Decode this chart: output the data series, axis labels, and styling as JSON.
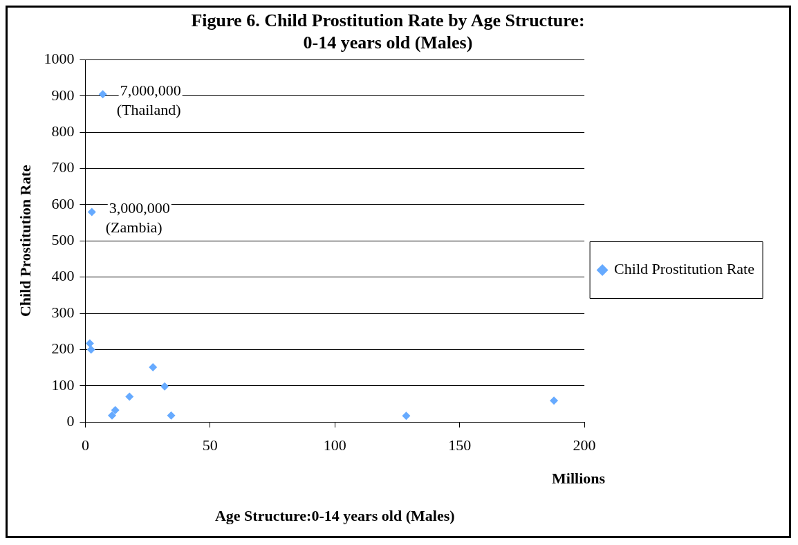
{
  "chart_data": {
    "type": "scatter",
    "title": "Figure 6. Child Prostitution Rate by Age Structure: 0-14 years old (Males)",
    "xlabel": "Age Structure:0-14 years old (Males)",
    "ylabel": "Child Prostitution Rate",
    "x": [
      7,
      2.6,
      1.8,
      2.3,
      10.7,
      12,
      17.7,
      27.1,
      31.8,
      34.4,
      128.6,
      187.8
    ],
    "series": [
      {
        "name": "Child Prostitution Rate",
        "color": "#66aaff",
        "values": [
          905,
          580,
          217,
          200,
          18,
          33,
          70,
          151,
          98,
          18,
          17,
          59
        ]
      }
    ],
    "xlim": [
      0,
      200
    ],
    "xticks": [
      0,
      50,
      100,
      150,
      200
    ],
    "ylim": [
      0,
      1000
    ],
    "yticks": [
      0,
      100,
      200,
      300,
      400,
      500,
      600,
      700,
      800,
      900,
      1000
    ],
    "grid": "y",
    "legend": "right",
    "marker": "diamond",
    "annotations": [
      {
        "text": "7,000,000\n(Thailand)",
        "x": 7,
        "y": 905
      },
      {
        "text": "3,000,000\n(Zambia)",
        "x": 2.6,
        "y": 580
      },
      "Millions"
    ]
  }
}
